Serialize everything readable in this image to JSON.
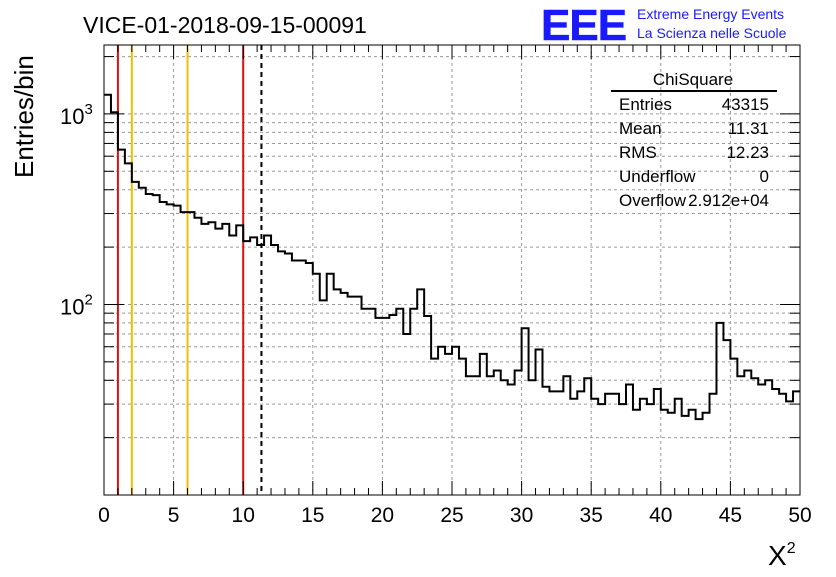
{
  "header": {
    "run_title": "VICE-01-2018-09-15-00091",
    "logo_text": "EEE",
    "logo_line1": "Extreme Energy Events",
    "logo_line2": "La Scienza nelle Scuole"
  },
  "stats_box": {
    "title": "ChiSquare",
    "rows": [
      {
        "label": "Entries",
        "value": "43315"
      },
      {
        "label": "Mean",
        "value": "11.31"
      },
      {
        "label": "RMS",
        "value": "12.23"
      },
      {
        "label": "Underflow",
        "value": "0"
      },
      {
        "label": "Overflow",
        "value": "2.912e+04"
      }
    ]
  },
  "colors": {
    "histogram": "#000000",
    "red_line": "#dd1111",
    "yellow_line": "#f0c000",
    "mean_line": "#000000",
    "logo": "#1a1aff",
    "grid": "#9a9a9a"
  },
  "chart_data": {
    "type": "histogram",
    "title": "VICE-01-2018-09-15-00091",
    "xlabel": "X²",
    "xlabel_base": "X",
    "xlabel_sup": "2",
    "ylabel": "Entries/bin",
    "xlim": [
      0,
      50
    ],
    "ylim": [
      10,
      2300
    ],
    "yscale": "log",
    "grid": true,
    "x_ticks": [
      0,
      5,
      10,
      15,
      20,
      25,
      30,
      35,
      40,
      45,
      50
    ],
    "x_tick_labels": [
      "0",
      "5",
      "10",
      "15",
      "20",
      "25",
      "30",
      "35",
      "40",
      "45",
      "50"
    ],
    "y_tick_labels": [
      {
        "value": 100,
        "base": "10",
        "exp": "2"
      },
      {
        "value": 1000,
        "base": "10",
        "exp": "3"
      }
    ],
    "bin_width": 0.5,
    "bin_start": 0,
    "counts": [
      1260,
      1020,
      650,
      550,
      440,
      410,
      380,
      375,
      345,
      335,
      330,
      305,
      305,
      285,
      265,
      270,
      250,
      265,
      230,
      260,
      215,
      225,
      205,
      230,
      205,
      190,
      185,
      170,
      170,
      165,
      145,
      105,
      145,
      120,
      115,
      110,
      110,
      95,
      95,
      85,
      85,
      88,
      95,
      70,
      95,
      120,
      87,
      52,
      60,
      55,
      60,
      52,
      42,
      42,
      55,
      42,
      45,
      40,
      38,
      45,
      75,
      40,
      58,
      37,
      35,
      35,
      42,
      32,
      35,
      41,
      32,
      30,
      34,
      34,
      30,
      38,
      28,
      32,
      30,
      36,
      28,
      27,
      32,
      26,
      28,
      25,
      27,
      34,
      80,
      65,
      52,
      42,
      45,
      41,
      38,
      40,
      36,
      34,
      31,
      35
    ],
    "vertical_lines": [
      {
        "x": 1,
        "color": "red"
      },
      {
        "x": 2,
        "color": "yellow"
      },
      {
        "x": 6,
        "color": "yellow"
      },
      {
        "x": 10,
        "color": "red"
      },
      {
        "x": 11.31,
        "color": "black",
        "style": "dashed",
        "label": "mean"
      }
    ]
  }
}
